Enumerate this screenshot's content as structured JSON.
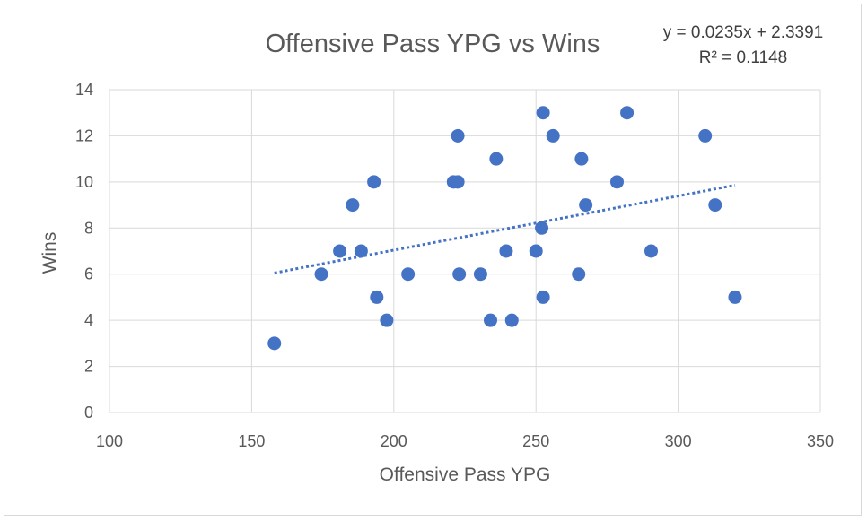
{
  "chart_data": {
    "type": "scatter",
    "title": "Offensive Pass YPG vs Wins",
    "xlabel": "Offensive Pass YPG",
    "ylabel": "Wins",
    "xlim": [
      100,
      350
    ],
    "ylim": [
      0,
      14
    ],
    "x_ticks": [
      100,
      150,
      200,
      250,
      300,
      350
    ],
    "y_ticks": [
      0,
      2,
      4,
      6,
      8,
      10,
      12,
      14
    ],
    "x_tick_labels": [
      "100",
      "150",
      "200",
      "250",
      "300",
      "350"
    ],
    "y_tick_labels": [
      "0",
      "2",
      "4",
      "6",
      "8",
      "10",
      "12",
      "14"
    ],
    "grid": true,
    "legend": "none",
    "marker_color": "#4472c4",
    "trendline": {
      "type": "linear",
      "slope": 0.0235,
      "intercept": 2.3391,
      "x_range": [
        158,
        320
      ],
      "style": "dotted",
      "equation_label": "y = 0.0235x + 2.3391",
      "r2_label": "R² = 0.1148"
    },
    "series": [
      {
        "points": [
          {
            "x": 158,
            "y": 3
          },
          {
            "x": 174.5,
            "y": 6
          },
          {
            "x": 181,
            "y": 7
          },
          {
            "x": 185.5,
            "y": 9
          },
          {
            "x": 188.5,
            "y": 7
          },
          {
            "x": 193,
            "y": 10
          },
          {
            "x": 194,
            "y": 5
          },
          {
            "x": 197.5,
            "y": 4
          },
          {
            "x": 205,
            "y": 6
          },
          {
            "x": 221,
            "y": 10
          },
          {
            "x": 222.5,
            "y": 10
          },
          {
            "x": 222.5,
            "y": 12
          },
          {
            "x": 223,
            "y": 6
          },
          {
            "x": 230.5,
            "y": 6
          },
          {
            "x": 234,
            "y": 4
          },
          {
            "x": 236,
            "y": 11
          },
          {
            "x": 239.5,
            "y": 7
          },
          {
            "x": 241.5,
            "y": 4
          },
          {
            "x": 250,
            "y": 7
          },
          {
            "x": 252,
            "y": 8
          },
          {
            "x": 252.5,
            "y": 13
          },
          {
            "x": 252.5,
            "y": 5
          },
          {
            "x": 256,
            "y": 12
          },
          {
            "x": 265,
            "y": 6
          },
          {
            "x": 266,
            "y": 11
          },
          {
            "x": 267.5,
            "y": 9
          },
          {
            "x": 278.5,
            "y": 10
          },
          {
            "x": 282,
            "y": 13
          },
          {
            "x": 290.5,
            "y": 7
          },
          {
            "x": 309.5,
            "y": 12
          },
          {
            "x": 313,
            "y": 9
          },
          {
            "x": 320,
            "y": 5
          }
        ]
      }
    ]
  }
}
